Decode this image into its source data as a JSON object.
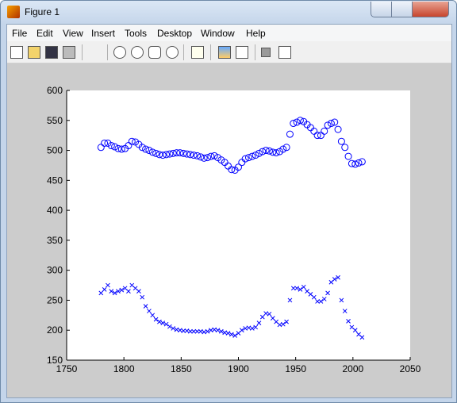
{
  "window_title": "Figure 1",
  "menu": [
    "File",
    "Edit",
    "View",
    "Insert",
    "Tools",
    "Desktop",
    "Window",
    "Help"
  ],
  "chart_data": {
    "type": "scatter",
    "x": [
      1780,
      1783,
      1786,
      1789,
      1792,
      1795,
      1798,
      1801,
      1804,
      1807,
      1810,
      1813,
      1816,
      1819,
      1822,
      1825,
      1828,
      1831,
      1834,
      1837,
      1840,
      1843,
      1846,
      1849,
      1852,
      1855,
      1858,
      1861,
      1864,
      1867,
      1870,
      1873,
      1876,
      1879,
      1882,
      1885,
      1888,
      1891,
      1894,
      1897,
      1900,
      1903,
      1906,
      1909,
      1912,
      1915,
      1918,
      1921,
      1924,
      1927,
      1930,
      1933,
      1936,
      1939,
      1942,
      1945,
      1948,
      1951,
      1954,
      1957,
      1960,
      1963,
      1966,
      1969,
      1972,
      1975,
      1978,
      1981,
      1984,
      1987,
      1990,
      1993,
      1996,
      1999,
      2002,
      2005,
      2008
    ],
    "series": [
      {
        "marker": "o",
        "color": "#0000ff",
        "values": [
          505,
          512,
          512,
          508,
          506,
          503,
          502,
          503,
          508,
          515,
          514,
          510,
          505,
          502,
          500,
          497,
          495,
          493,
          492,
          493,
          494,
          495,
          496,
          496,
          495,
          494,
          493,
          492,
          491,
          489,
          487,
          488,
          490,
          491,
          488,
          484,
          480,
          474,
          468,
          467,
          472,
          480,
          486,
          488,
          490,
          492,
          495,
          498,
          500,
          499,
          497,
          496,
          498,
          502,
          505,
          527,
          545,
          547,
          550,
          548,
          543,
          538,
          532,
          525,
          525,
          532,
          542,
          545,
          547,
          535,
          515,
          505,
          490,
          478,
          477,
          479,
          481
        ]
      },
      {
        "marker": "x",
        "color": "#0000ff",
        "values": [
          262,
          268,
          275,
          265,
          262,
          265,
          267,
          270,
          265,
          275,
          270,
          265,
          255,
          240,
          232,
          225,
          218,
          214,
          212,
          210,
          206,
          203,
          201,
          200,
          199,
          199,
          198,
          198,
          198,
          198,
          197,
          198,
          200,
          201,
          200,
          198,
          196,
          195,
          193,
          191,
          195,
          200,
          203,
          204,
          203,
          205,
          212,
          222,
          228,
          227,
          220,
          214,
          209,
          210,
          214,
          250,
          270,
          270,
          268,
          272,
          265,
          260,
          255,
          248,
          248,
          252,
          262,
          280,
          285,
          288,
          250,
          232,
          215,
          205,
          200,
          193,
          188
        ]
      }
    ],
    "xlim": [
      1750,
      2050
    ],
    "xticks": [
      1750,
      1800,
      1850,
      1900,
      1950,
      2000,
      2050
    ],
    "ylim": [
      150,
      600
    ],
    "yticks": [
      150,
      200,
      250,
      300,
      350,
      400,
      450,
      500,
      550,
      600
    ]
  }
}
